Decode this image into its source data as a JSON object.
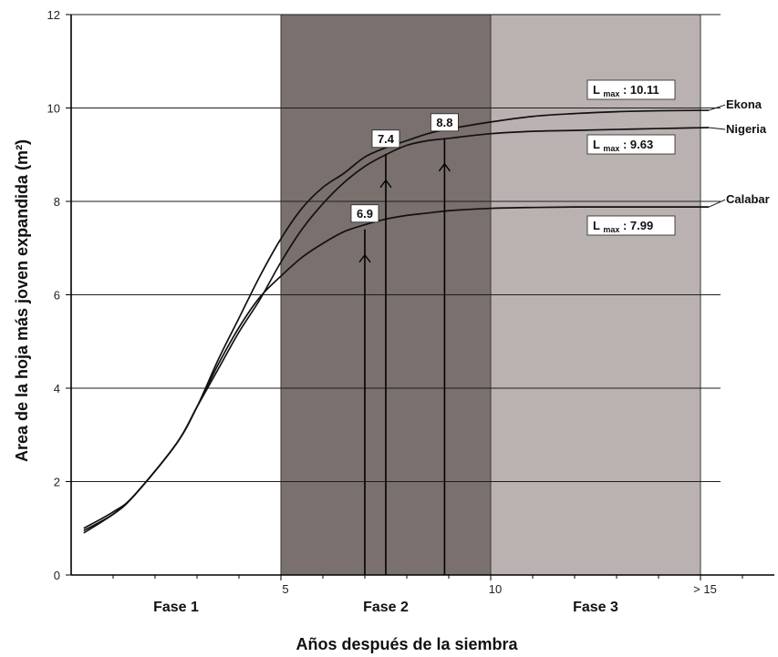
{
  "chart_data": {
    "type": "line",
    "ylabel": "Area de la hoja más joven expandida (m²)",
    "xlabel": "Años después de la siembra",
    "ylim": [
      0,
      12
    ],
    "xlim": [
      0,
      16
    ],
    "yticks": [
      "0",
      "2",
      "4",
      "6",
      "8",
      "10",
      "12"
    ],
    "xticks": [
      {
        "value": 5,
        "label": "5"
      },
      {
        "value": 10,
        "label": "10"
      },
      {
        "value": 15,
        "label": "> 15"
      }
    ],
    "grid": true,
    "phases": [
      {
        "label": "Fase 1",
        "from": 0,
        "to": 5,
        "color": "#ffffff"
      },
      {
        "label": "Fase 2",
        "from": 5,
        "to": 10,
        "color": "#7a706e"
      },
      {
        "label": "Fase 3",
        "from": 10,
        "to": 15,
        "color": "#bab2b1"
      }
    ],
    "series": [
      {
        "name": "Ekona",
        "lmax": "10.11",
        "x": [
          0.3,
          1,
          1.5,
          2.5,
          3,
          3.5,
          4,
          4.5,
          5,
          5.5,
          6,
          6.5,
          7,
          7.5,
          8,
          8.5,
          9,
          10,
          11,
          12,
          13,
          14,
          15.2
        ],
        "y": [
          1.0,
          1.35,
          1.7,
          2.8,
          3.6,
          4.6,
          5.5,
          6.4,
          7.2,
          7.85,
          8.3,
          8.6,
          8.95,
          9.15,
          9.3,
          9.45,
          9.55,
          9.7,
          9.82,
          9.88,
          9.92,
          9.94,
          9.95
        ]
      },
      {
        "name": "Nigeria",
        "lmax": "9.63",
        "x": [
          0.3,
          1,
          1.5,
          2.5,
          3,
          3.5,
          4,
          4.5,
          5,
          5.5,
          6,
          6.5,
          7,
          7.5,
          8,
          8.5,
          9,
          10,
          11,
          12,
          13,
          14,
          15.2
        ],
        "y": [
          0.9,
          1.3,
          1.7,
          2.8,
          3.6,
          4.4,
          5.2,
          5.9,
          6.7,
          7.4,
          7.95,
          8.4,
          8.75,
          9.0,
          9.2,
          9.3,
          9.35,
          9.45,
          9.5,
          9.52,
          9.54,
          9.56,
          9.58
        ]
      },
      {
        "name": "Calabar",
        "lmax": "7.99",
        "x": [
          0.3,
          1,
          1.5,
          2.5,
          3,
          3.5,
          4,
          4.5,
          5,
          5.5,
          6,
          6.5,
          7,
          7.5,
          8,
          8.5,
          9,
          10,
          11,
          12,
          13,
          14,
          15.2
        ],
        "y": [
          0.95,
          1.3,
          1.7,
          2.8,
          3.6,
          4.5,
          5.3,
          5.95,
          6.4,
          6.8,
          7.1,
          7.35,
          7.5,
          7.62,
          7.7,
          7.75,
          7.8,
          7.85,
          7.87,
          7.88,
          7.88,
          7.88,
          7.88
        ]
      }
    ],
    "markers": [
      {
        "label": "6.9",
        "x": 7.0,
        "y": 7.4
      },
      {
        "label": "7.4",
        "x": 7.5,
        "y": 9.0
      },
      {
        "label": "8.8",
        "x": 8.9,
        "y": 9.35
      }
    ],
    "lmax_prefix": "L",
    "lmax_sub": "max"
  }
}
